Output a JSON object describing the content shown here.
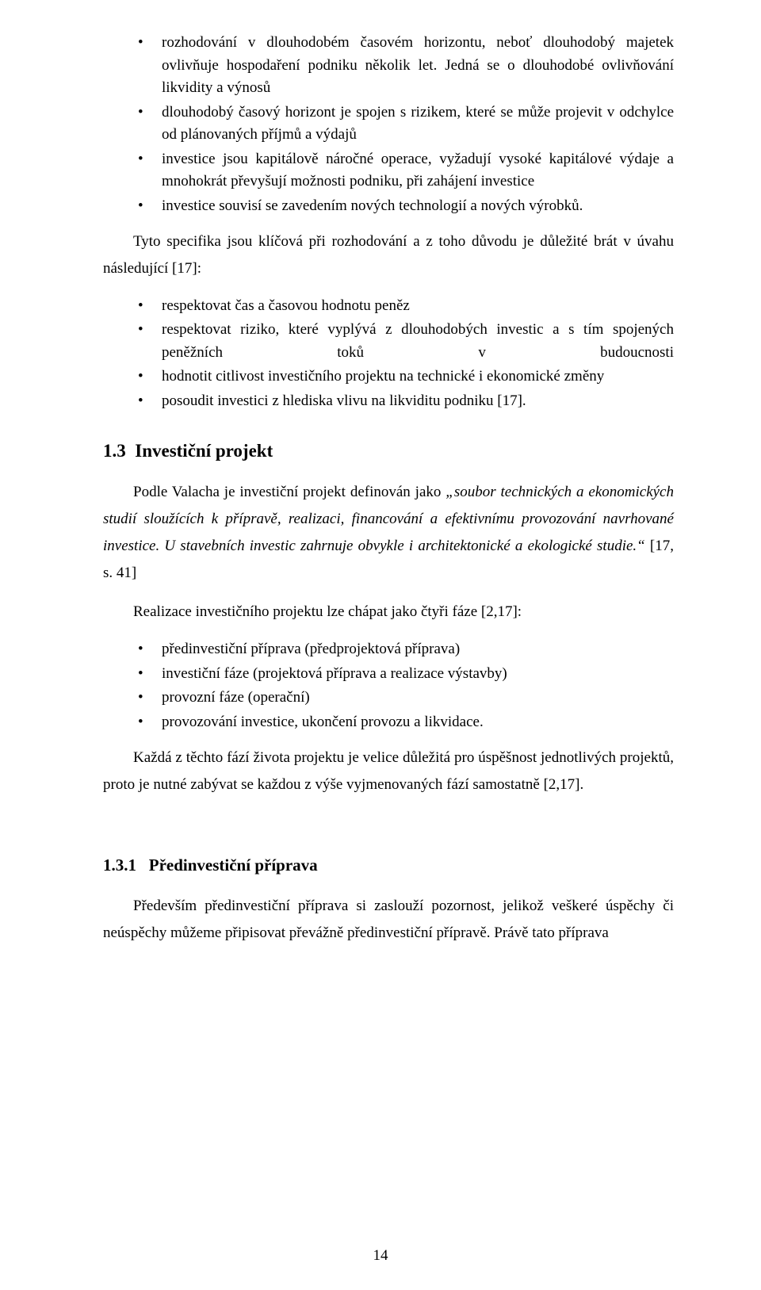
{
  "list1": {
    "items": [
      "rozhodování v dlouhodobém časovém horizontu, neboť dlouhodobý majetek ovlivňuje hospodaření podniku několik let. Jedná se o dlouhodobé ovlivňování likvidity a výnosů",
      "dlouhodobý časový horizont je spojen s rizikem, které se může projevit v odchylce od plánovaných příjmů a výdajů",
      "investice jsou kapitálově náročné operace, vyžadují vysoké kapitálové výdaje a mnohokrát převyšují možnosti podniku, při zahájení investice",
      "investice souvisí se zavedením nových technologií a nových výrobků."
    ]
  },
  "para1": "Tyto specifika jsou klíčová při rozhodování a z toho důvodu je důležité brát v úvahu následující [17]:",
  "list2": {
    "items": [
      "respektovat čas a časovou hodnotu peněz",
      "respektovat riziko, které vyplývá z dlouhodobých investic a s tím spojených peněžních toků v budoucnosti",
      "hodnotit citlivost investičního projektu na technické i ekonomické změny",
      "posoudit investici z hlediska vlivu na likviditu podniku [17]."
    ]
  },
  "heading1": {
    "num": "1.3",
    "title": "Investiční projekt"
  },
  "para2_a": "Podle Valacha je investiční projekt definován jako ",
  "para2_b": "„soubor technických a ekonomických studií sloužících k přípravě, realizaci, financování a efektivnímu provozování navrhované investice. U stavebních investic zahrnuje obvykle i architektonické a ekologické studie.“",
  "para2_c": " [17, s. 41]",
  "para3": "Realizace investičního projektu lze chápat jako čtyři fáze [2,17]:",
  "list3": {
    "items": [
      "předinvestiční příprava (předprojektová příprava)",
      "investiční fáze (projektová příprava a realizace výstavby)",
      "provozní fáze (operační)",
      "provozování investice, ukončení provozu a likvidace."
    ]
  },
  "para4": "Každá z těchto fází života projektu je velice důležitá pro úspěšnost jednotlivých projektů, proto je nutné zabývat se každou z výše vyjmenovaných fází samostatně [2,17].",
  "heading2": {
    "num": "1.3.1",
    "title": "Předinvestiční příprava"
  },
  "para5": "Především předinvestiční příprava si zaslouží pozornost, jelikož veškeré úspěchy či neúspěchy můžeme připisovat převážně předinvestiční přípravě. Právě tato příprava",
  "pageNumber": "14"
}
